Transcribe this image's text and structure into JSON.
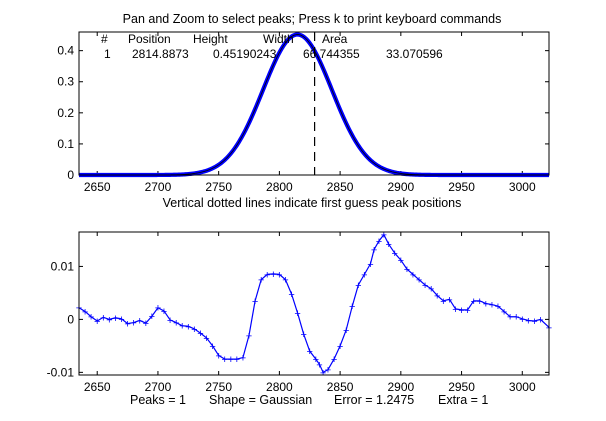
{
  "window": {
    "top_title": "Pan and Zoom to select peaks; Press k to print keyboard commands",
    "mid_title": "Vertical dotted lines indicate first guess peak positions",
    "bottom_status": "Peaks = 1      Shape = Gaussian      Error = 1.2475      Extra = 1"
  },
  "results_table": {
    "headers": [
      "#",
      "Position",
      "Height",
      "Width",
      "Area"
    ],
    "rows": [
      [
        "1",
        "2814.8873",
        "0.45190243",
        "66.744355",
        "33.070596"
      ]
    ]
  },
  "colors": {
    "data": "#0000ff",
    "fit": "#000000",
    "axes": "#000000"
  },
  "chart_data": [
    {
      "type": "line",
      "title": "Pan and Zoom to select peaks; Press k to print keyboard commands",
      "xlim": [
        2635,
        3022
      ],
      "ylim": [
        0,
        0.46
      ],
      "xticks": [
        2650,
        2700,
        2750,
        2800,
        2850,
        2900,
        2950,
        3000
      ],
      "yticks": [
        0,
        0.1,
        0.2,
        0.3,
        0.4
      ],
      "ytick_labels": [
        "0",
        "0.1",
        "0.2",
        "0.3",
        "0.4"
      ],
      "grid": false,
      "peak_guess_line_x": 2829,
      "series": [
        {
          "role": "data",
          "style": "blue markers",
          "peak": {
            "position": 2814.8873,
            "height": 0.4519,
            "width": 66.744355
          }
        },
        {
          "role": "fit",
          "style": "black line",
          "peak": {
            "position": 2814.8873,
            "height": 0.45190243,
            "width": 66.744355
          }
        }
      ]
    },
    {
      "type": "line",
      "title": "Vertical dotted lines indicate first guess peak positions",
      "xlim": [
        2635,
        3022
      ],
      "ylim": [
        -0.0105,
        0.0165
      ],
      "xticks": [
        2650,
        2700,
        2750,
        2800,
        2850,
        2900,
        2950,
        3000
      ],
      "yticks": [
        -0.01,
        0,
        0.01
      ],
      "ytick_labels": [
        "-0.01",
        "0",
        "0.01"
      ],
      "grid": false,
      "series": [
        {
          "role": "residuals",
          "style": "blue markers",
          "x": [
            2635,
            2640,
            2645,
            2650,
            2655,
            2660,
            2665,
            2670,
            2675,
            2680,
            2685,
            2690,
            2695,
            2700,
            2705,
            2710,
            2715,
            2720,
            2725,
            2730,
            2735,
            2740,
            2745,
            2750,
            2755,
            2760,
            2765,
            2770,
            2775,
            2780,
            2785,
            2790,
            2795,
            2800,
            2805,
            2810,
            2815,
            2820,
            2825,
            2830,
            2833,
            2836,
            2840,
            2845,
            2850,
            2855,
            2860,
            2865,
            2870,
            2875,
            2878,
            2882,
            2886,
            2890,
            2895,
            2900,
            2905,
            2910,
            2915,
            2920,
            2925,
            2930,
            2935,
            2940,
            2945,
            2950,
            2955,
            2960,
            2965,
            2970,
            2975,
            2980,
            2985,
            2990,
            2995,
            3000,
            3005,
            3010,
            3015,
            3022
          ],
          "y": [
            0.0022,
            0.0015,
            0.0005,
            -0.0003,
            0.0004,
            0.0,
            0.0003,
            0.0001,
            -0.0008,
            -0.0006,
            -0.0002,
            -0.0007,
            0.0006,
            0.0022,
            0.0016,
            -0.0001,
            -0.0006,
            -0.0012,
            -0.0013,
            -0.0018,
            -0.0026,
            -0.0035,
            -0.005,
            -0.0068,
            -0.0075,
            -0.0075,
            -0.0075,
            -0.0072,
            -0.003,
            0.0035,
            0.0075,
            0.0085,
            0.0086,
            0.0085,
            0.0075,
            0.0048,
            0.0012,
            -0.0028,
            -0.006,
            -0.0075,
            -0.0085,
            -0.01,
            -0.0095,
            -0.0075,
            -0.005,
            -0.002,
            0.0025,
            0.0065,
            0.0085,
            0.0105,
            0.0132,
            0.0148,
            0.016,
            0.0142,
            0.0125,
            0.0112,
            0.0095,
            0.0085,
            0.0075,
            0.0065,
            0.0058,
            0.0045,
            0.0035,
            0.0038,
            0.002,
            0.0018,
            0.0018,
            0.0035,
            0.0035,
            0.003,
            0.0028,
            0.0025,
            0.0015,
            0.0005,
            0.0005,
            0.0001,
            -0.0002,
            -0.0003,
            0.0,
            -0.0015
          ]
        }
      ]
    }
  ],
  "bottom_status": {
    "peaks": "Peaks = 1",
    "shape": "Shape = Gaussian",
    "error": "Error = 1.2475",
    "extra": "Extra = 1"
  }
}
